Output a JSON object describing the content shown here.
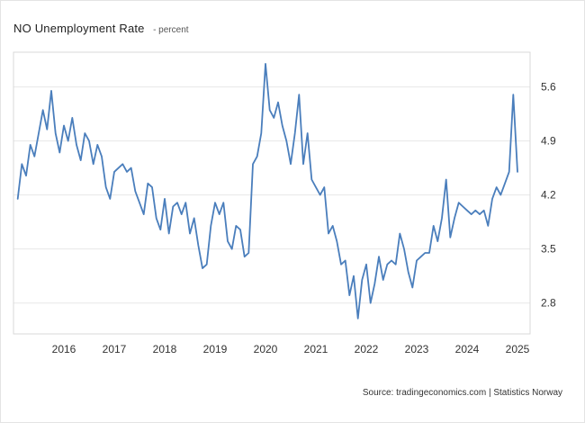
{
  "header": {
    "title": "NO Unemployment Rate",
    "unit_label": "- percent"
  },
  "footer": {
    "source": "Source: tradingeconomics.com | Statistics Norway"
  },
  "chart_data": {
    "type": "line",
    "title": "NO Unemployment Rate",
    "ylabel": "percent",
    "xlabel": "",
    "legend": "none",
    "grid": "horizontal",
    "line_color": "#4a7ebc",
    "grid_color": "#e7e7e7",
    "frame_color": "#d9d9d9",
    "tick_label_color": "#333333",
    "x_tick_labels": [
      "2016",
      "2017",
      "2018",
      "2019",
      "2020",
      "2021",
      "2022",
      "2023",
      "2024",
      "2025"
    ],
    "y_tick_values": [
      2.8,
      3.5,
      4.2,
      4.9,
      5.6
    ],
    "xlim": [
      2015.5,
      2025.75
    ],
    "ylim": [
      2.4,
      6.05
    ],
    "series": [
      {
        "name": "NO Unemployment Rate",
        "x_start": 2015.5833,
        "x_step_years": 0.0833333,
        "values": [
          4.15,
          4.6,
          4.45,
          4.85,
          4.7,
          5.0,
          5.3,
          5.05,
          5.55,
          5.0,
          4.75,
          5.1,
          4.9,
          5.2,
          4.85,
          4.65,
          5.0,
          4.9,
          4.6,
          4.85,
          4.7,
          4.3,
          4.15,
          4.5,
          4.55,
          4.6,
          4.5,
          4.55,
          4.25,
          4.1,
          3.95,
          4.35,
          4.3,
          3.9,
          3.75,
          4.15,
          3.7,
          4.05,
          4.1,
          3.95,
          4.1,
          3.7,
          3.9,
          3.55,
          3.25,
          3.3,
          3.8,
          4.1,
          3.95,
          4.1,
          3.6,
          3.5,
          3.8,
          3.75,
          3.4,
          3.45,
          4.6,
          4.7,
          5.0,
          5.9,
          5.3,
          5.2,
          5.4,
          5.1,
          4.9,
          4.6,
          5.0,
          5.5,
          4.6,
          5.0,
          4.4,
          4.3,
          4.2,
          4.3,
          3.7,
          3.8,
          3.6,
          3.3,
          3.35,
          2.9,
          3.15,
          2.6,
          3.1,
          3.3,
          2.8,
          3.05,
          3.4,
          3.1,
          3.3,
          3.35,
          3.3,
          3.7,
          3.5,
          3.2,
          3.0,
          3.35,
          3.4,
          3.45,
          3.45,
          3.8,
          3.6,
          3.9,
          4.4,
          3.65,
          3.9,
          4.1,
          4.05,
          4.0,
          3.95,
          4.0,
          3.95,
          4.0,
          3.8,
          4.15,
          4.3,
          4.2,
          4.35,
          4.5,
          5.5,
          4.5
        ]
      }
    ]
  }
}
